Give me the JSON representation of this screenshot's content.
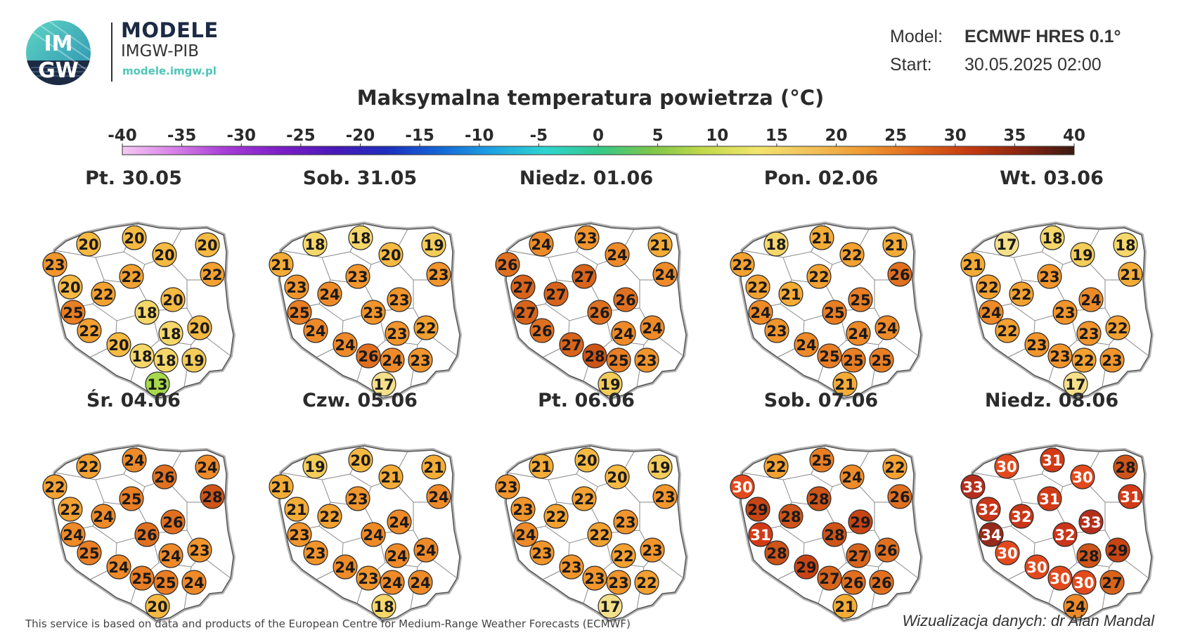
{
  "brand": {
    "logo_text_top": "IM",
    "logo_text_bottom": "GW",
    "title": "MODELE",
    "subtitle": "IMGW-PIB",
    "url": "modele.imgw.pl"
  },
  "meta": {
    "model_label": "Model:",
    "model_value": "ECMWF HRES 0.1°",
    "start_label": "Start:",
    "start_value": "30.05.2025 02:00"
  },
  "title": "Maksymalna temperatura powietrza (°C)",
  "scale": {
    "ticks": [
      "-40",
      "-35",
      "-30",
      "-25",
      "-20",
      "-15",
      "-10",
      "-5",
      "0",
      "5",
      "10",
      "15",
      "20",
      "25",
      "30",
      "35",
      "40"
    ],
    "min": -40,
    "max": 40,
    "colors": [
      "#f6c9f3",
      "#d67fe6",
      "#a53ad6",
      "#7a1ec7",
      "#4a18b8",
      "#1d2fbe",
      "#1466d6",
      "#1ea3e3",
      "#2fd4d0",
      "#33c98a",
      "#7cc64a",
      "#c3d94a",
      "#f2e56c",
      "#f2c25a",
      "#ef9b33",
      "#e0691c",
      "#c63b10",
      "#8a2410",
      "#3a1a12"
    ]
  },
  "panels": [
    {
      "day": "Pt. 30.05",
      "values": [
        23,
        20,
        20,
        20,
        20,
        22,
        20,
        22,
        22,
        20,
        25,
        18,
        22,
        18,
        20,
        20,
        18,
        18,
        19,
        13
      ]
    },
    {
      "day": "Sob. 31.05",
      "values": [
        21,
        18,
        18,
        20,
        19,
        23,
        23,
        24,
        23,
        23,
        25,
        23,
        24,
        23,
        22,
        24,
        26,
        24,
        23,
        17
      ]
    },
    {
      "day": "Niedz. 01.06",
      "values": [
        26,
        24,
        23,
        24,
        21,
        24,
        27,
        27,
        27,
        26,
        27,
        26,
        26,
        24,
        24,
        27,
        28,
        25,
        23,
        19
      ]
    },
    {
      "day": "Pon. 02.06",
      "values": [
        22,
        18,
        21,
        22,
        21,
        26,
        22,
        21,
        22,
        25,
        24,
        25,
        23,
        24,
        24,
        24,
        25,
        25,
        25,
        21
      ]
    },
    {
      "day": "Wt. 03.06",
      "values": [
        21,
        17,
        18,
        19,
        18,
        21,
        22,
        22,
        23,
        24,
        24,
        23,
        22,
        23,
        22,
        23,
        23,
        22,
        23,
        17
      ]
    },
    {
      "day": "Śr. 04.06",
      "values": [
        22,
        22,
        24,
        26,
        24,
        28,
        22,
        24,
        25,
        26,
        24,
        26,
        25,
        24,
        23,
        24,
        25,
        25,
        24,
        20
      ]
    },
    {
      "day": "Czw. 05.06",
      "values": [
        21,
        19,
        20,
        21,
        21,
        24,
        21,
        22,
        23,
        24,
        23,
        24,
        23,
        24,
        24,
        24,
        23,
        24,
        24,
        18
      ]
    },
    {
      "day": "Pt. 06.06",
      "values": [
        23,
        21,
        20,
        20,
        19,
        23,
        23,
        22,
        22,
        23,
        24,
        22,
        23,
        22,
        23,
        23,
        23,
        23,
        22,
        17
      ]
    },
    {
      "day": "Sob. 07.06",
      "values": [
        30,
        22,
        25,
        24,
        22,
        26,
        29,
        28,
        28,
        29,
        31,
        28,
        28,
        27,
        26,
        29,
        27,
        26,
        26,
        21
      ]
    },
    {
      "day": "Niedz. 08.06",
      "values": [
        33,
        30,
        31,
        30,
        28,
        31,
        32,
        32,
        31,
        33,
        34,
        32,
        30,
        28,
        29,
        30,
        30,
        30,
        27,
        24
      ]
    }
  ],
  "footer": {
    "source": "This service is based on data and products of the European Centre for Medium-Range Weather Forecasts (ECMWF)",
    "credit": "Wizualizacja danych: dr Alan Mandal"
  }
}
